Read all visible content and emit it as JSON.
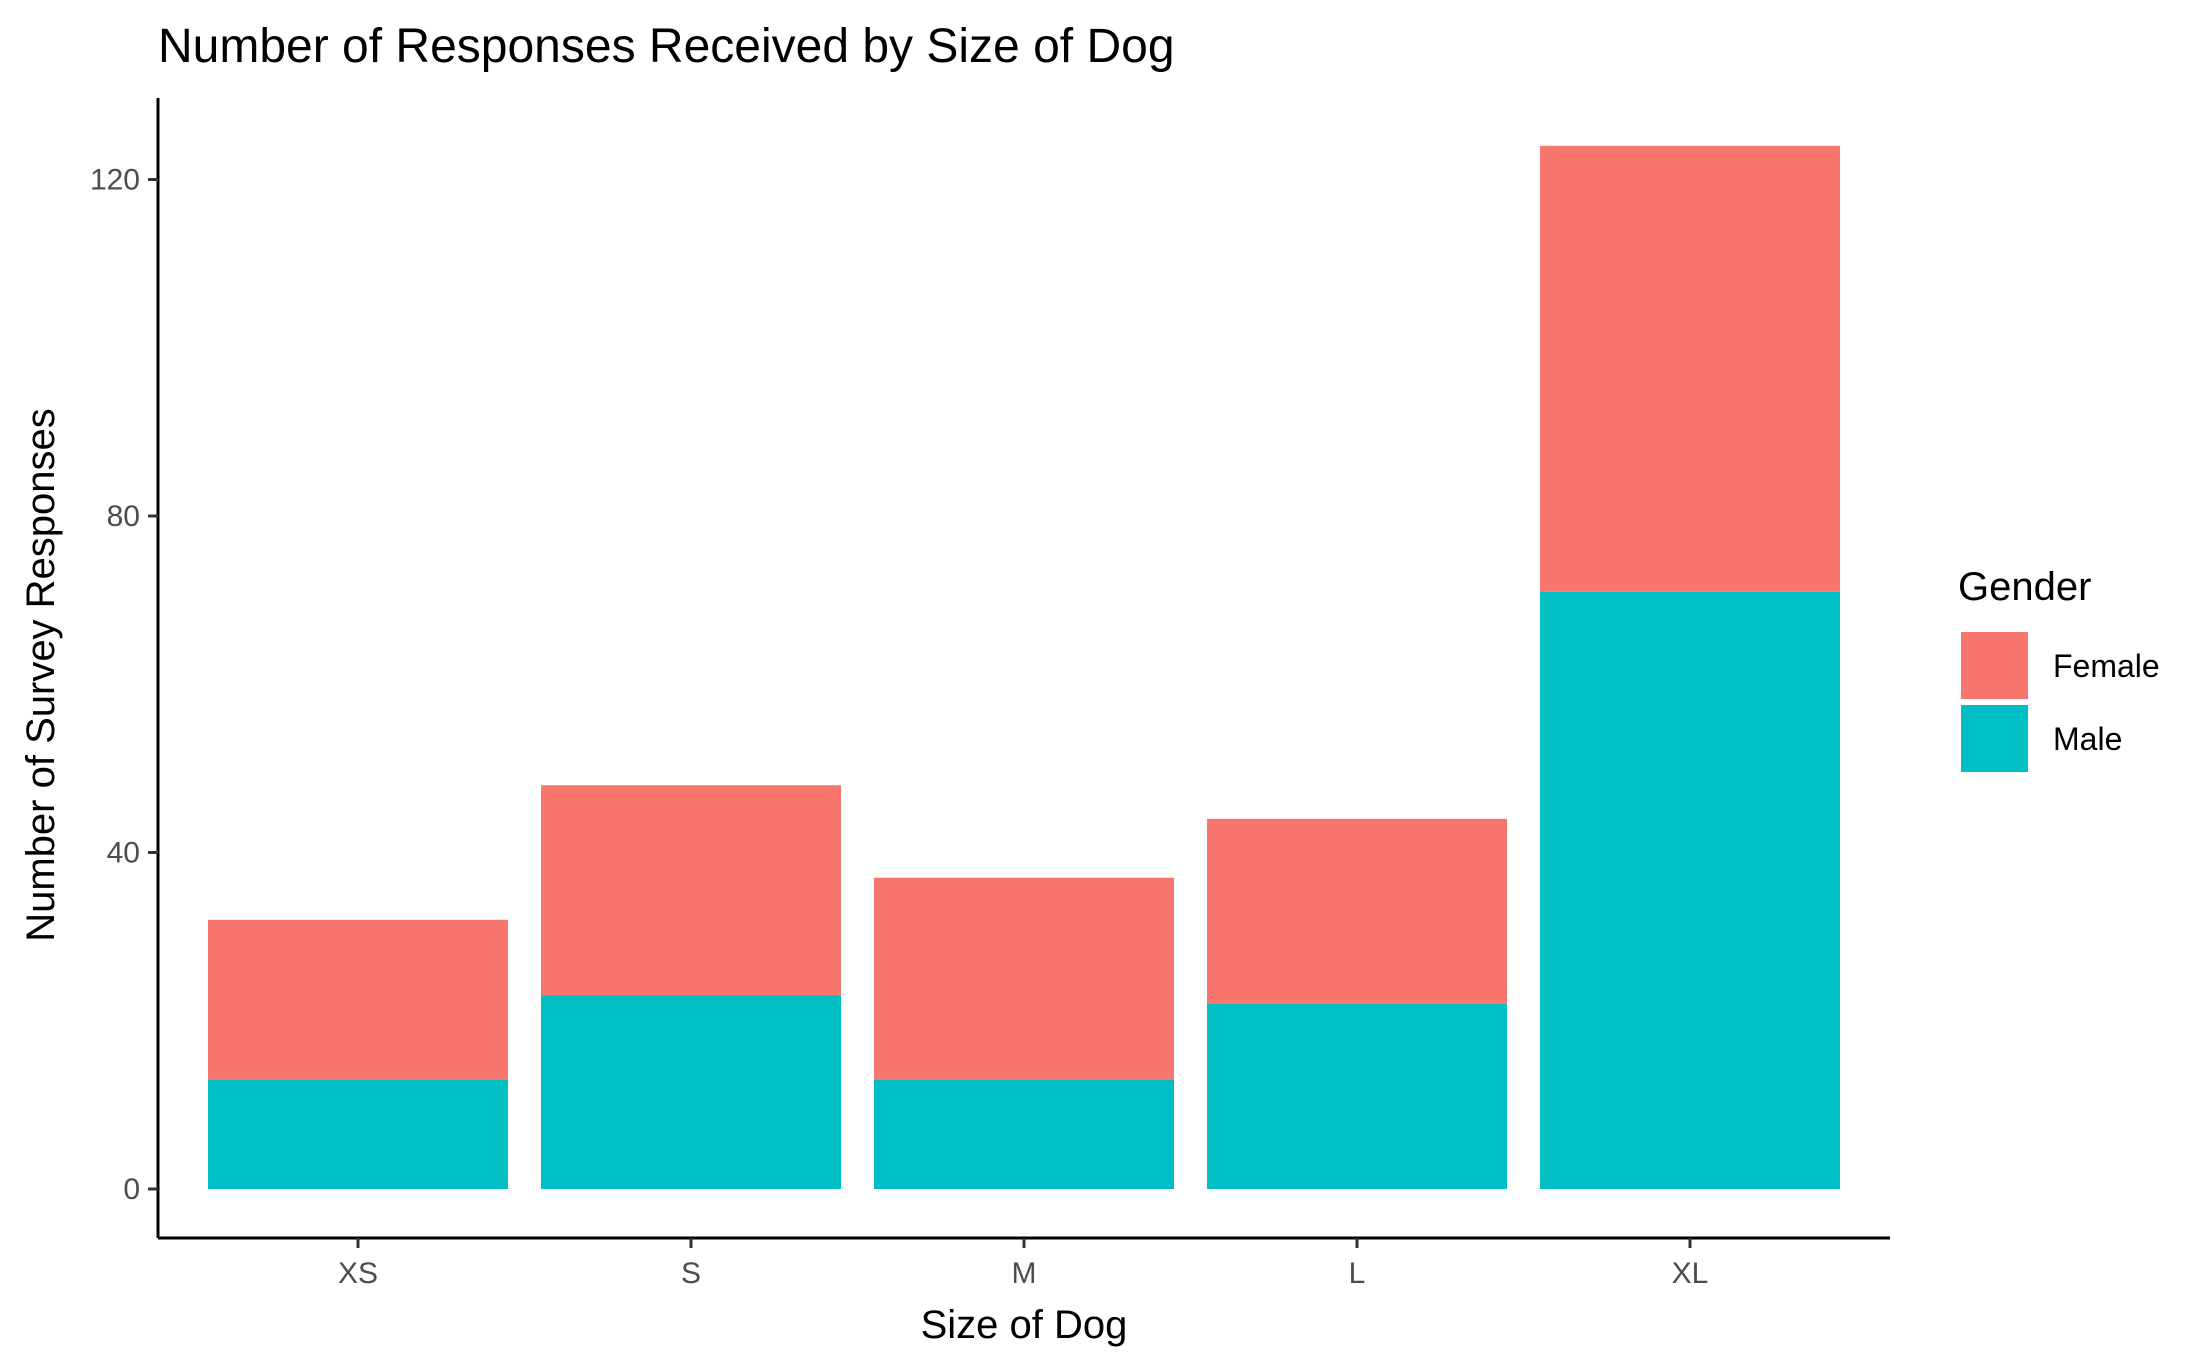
{
  "chart_data": {
    "type": "bar",
    "stacked": true,
    "title": "Number of Responses Received by Size of Dog",
    "xlabel": "Size of Dog",
    "ylabel": "Number of Survey Responses",
    "categories": [
      "XS",
      "S",
      "M",
      "L",
      "XL"
    ],
    "series": [
      {
        "name": "Male",
        "values": [
          13,
          23,
          13,
          22,
          71
        ],
        "color": "#00BFC4"
      },
      {
        "name": "Female",
        "values": [
          19,
          25,
          24,
          22,
          53
        ],
        "color": "#F8766D"
      }
    ],
    "ylim": [
      0,
      126
    ],
    "yticks": [
      0,
      40,
      80,
      120
    ],
    "grid": false,
    "legend": {
      "title": "Gender",
      "position": "right",
      "items": [
        "Female",
        "Male"
      ]
    }
  }
}
